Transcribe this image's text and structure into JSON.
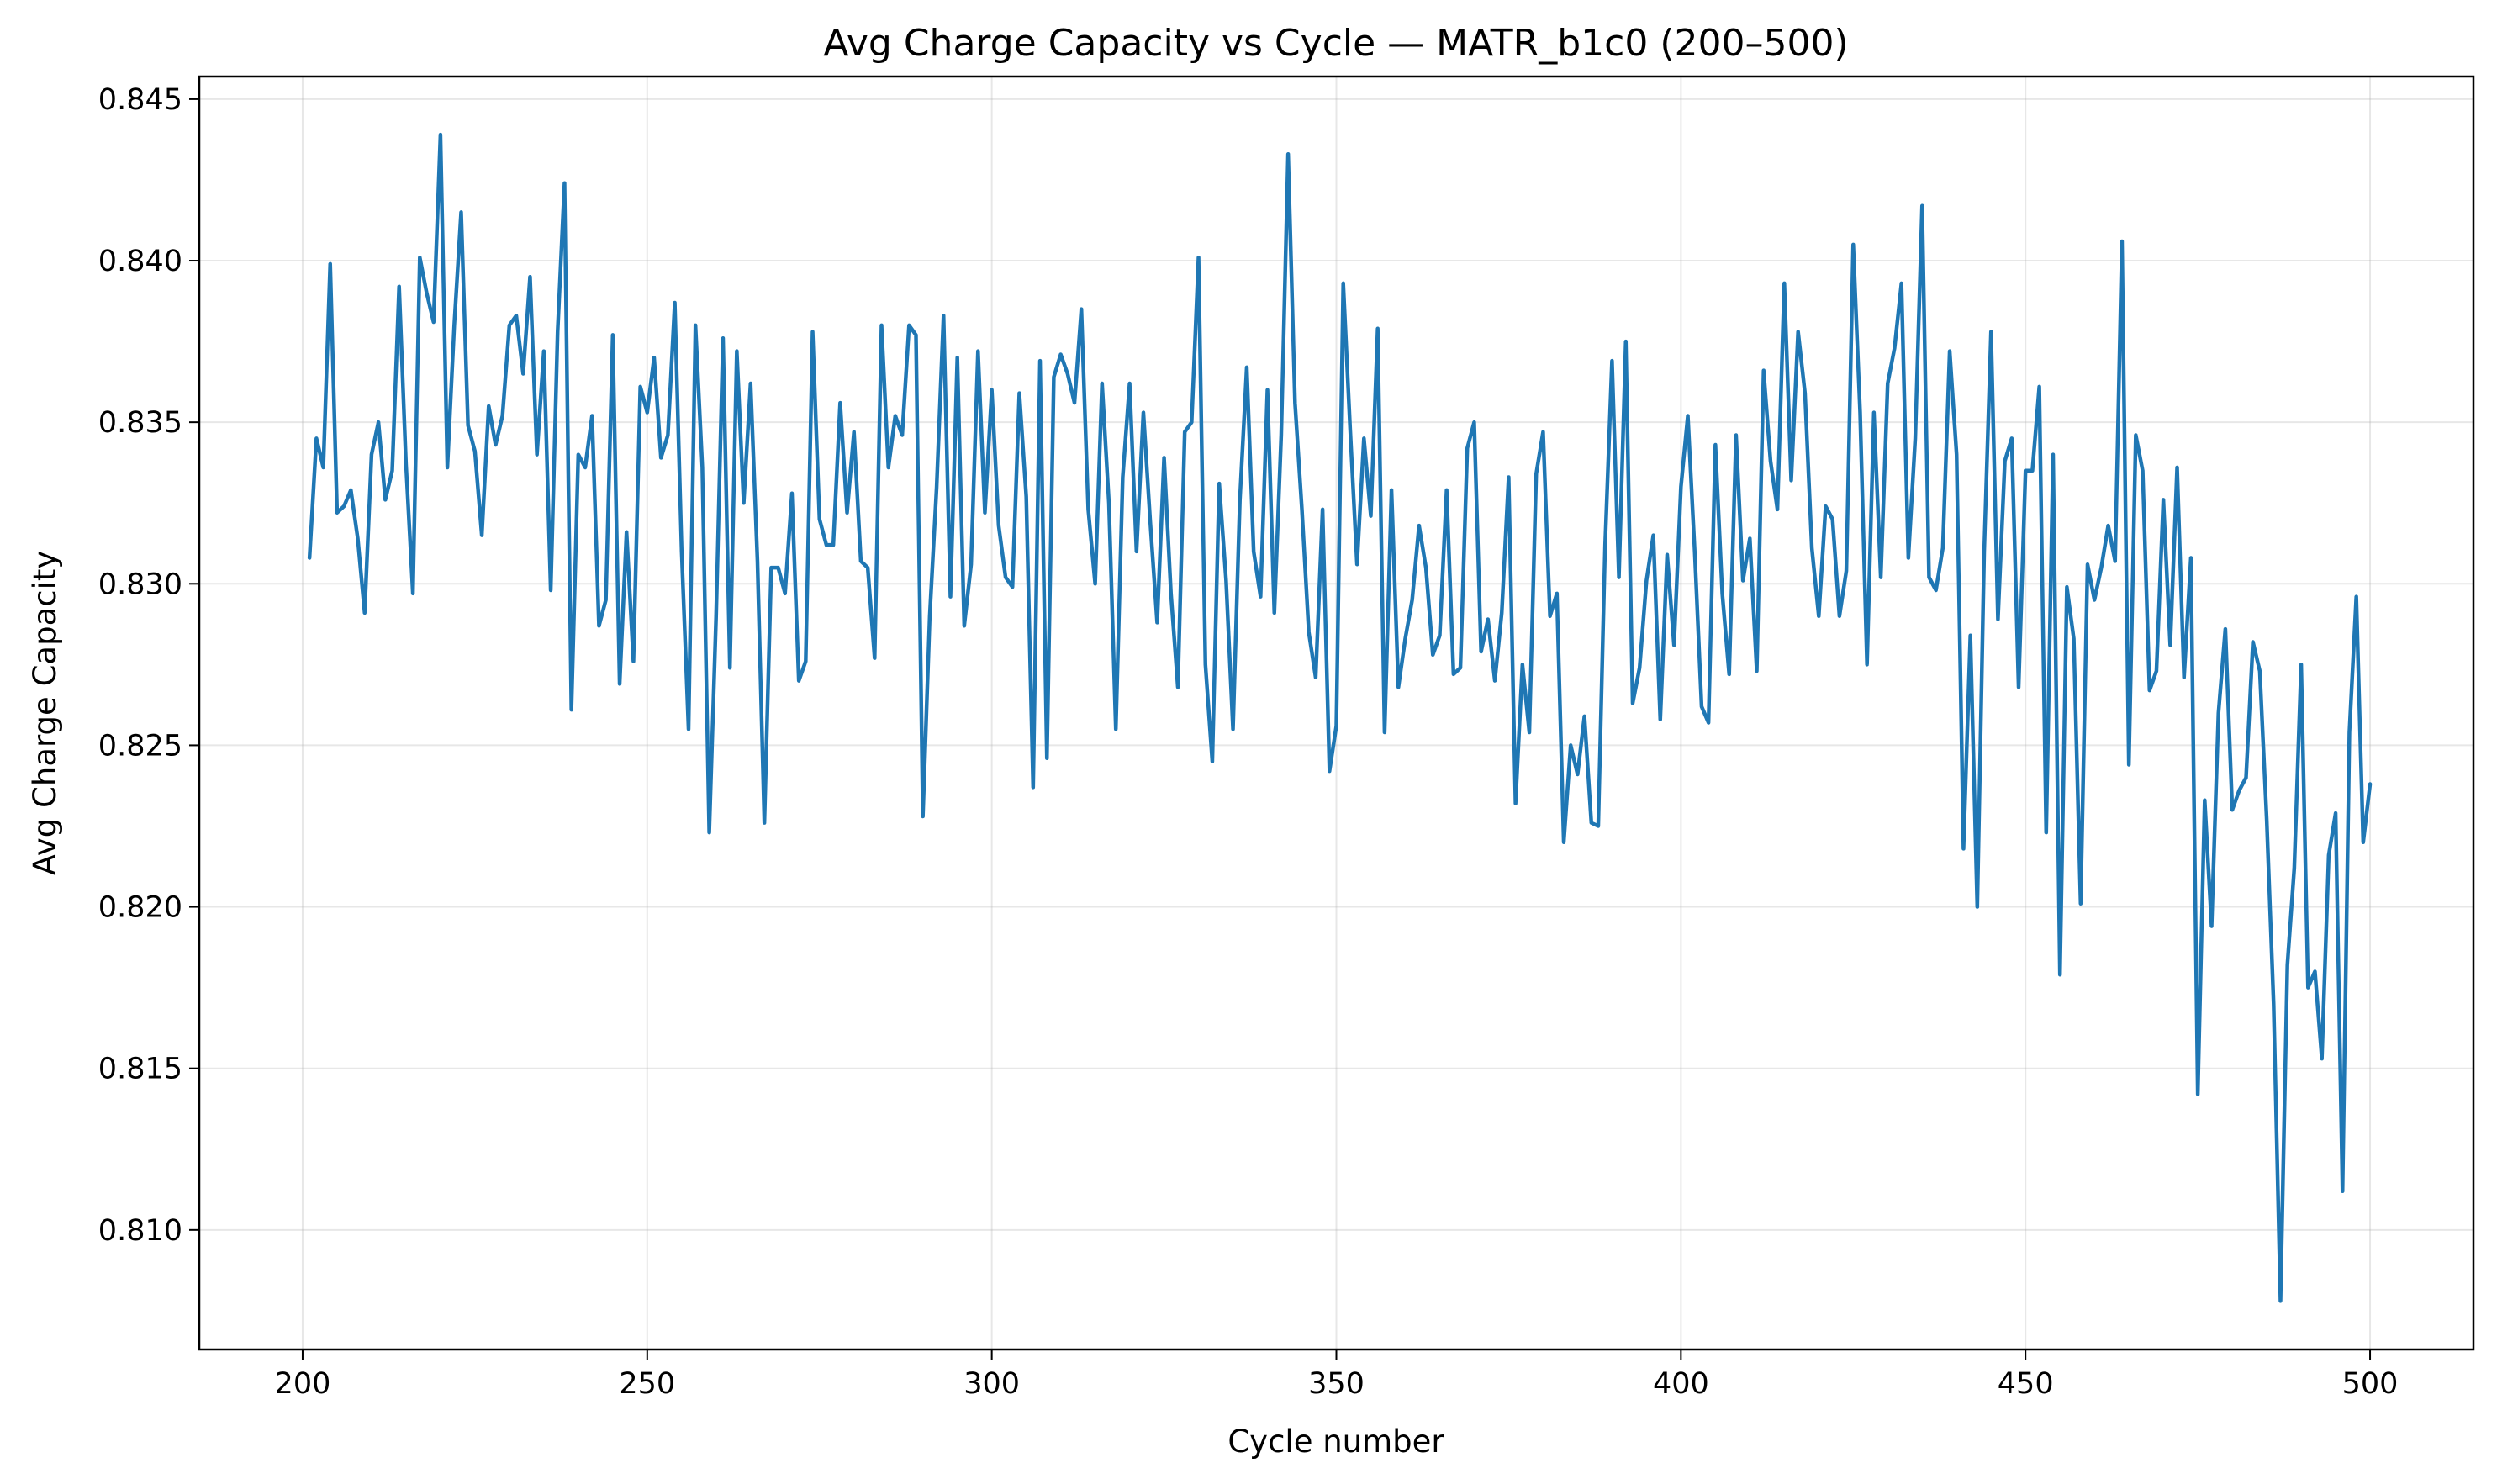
{
  "chart_data": {
    "type": "line",
    "title": "Avg Charge Capacity vs Cycle — MATR_b1c0 (200–500)",
    "xlabel": "Cycle number",
    "ylabel": "Avg Charge Capacity",
    "xlim": [
      185,
      515
    ],
    "ylim": [
      0.8063,
      0.8457
    ],
    "x_ticks": [
      200,
      250,
      300,
      350,
      400,
      450,
      500
    ],
    "y_ticks": [
      0.81,
      0.815,
      0.82,
      0.825,
      0.83,
      0.835,
      0.84,
      0.845
    ],
    "x_tick_labels": [
      "200",
      "250",
      "300",
      "350",
      "400",
      "450",
      "500"
    ],
    "y_tick_labels": [
      "0.810",
      "0.815",
      "0.820",
      "0.825",
      "0.830",
      "0.835",
      "0.840",
      "0.845"
    ],
    "grid": true,
    "legend": "none",
    "series": [
      {
        "color": "#1f77b4",
        "x_start": 201,
        "x_step": 1,
        "values": [
          0.8308,
          0.8345,
          0.8336,
          0.8399,
          0.8322,
          0.8324,
          0.8329,
          0.8314,
          0.8291,
          0.834,
          0.835,
          0.8326,
          0.8335,
          0.8392,
          0.8337,
          0.8297,
          0.8401,
          0.839,
          0.8381,
          0.8439,
          0.8336,
          0.838,
          0.8415,
          0.8349,
          0.8341,
          0.8315,
          0.8355,
          0.8343,
          0.8352,
          0.838,
          0.8383,
          0.8365,
          0.8395,
          0.834,
          0.8372,
          0.8298,
          0.8378,
          0.8424,
          0.8261,
          0.834,
          0.8336,
          0.8352,
          0.8287,
          0.8295,
          0.8377,
          0.8269,
          0.8316,
          0.8276,
          0.8361,
          0.8353,
          0.837,
          0.8339,
          0.8346,
          0.8387,
          0.831,
          0.8255,
          0.838,
          0.8336,
          0.8223,
          0.829,
          0.8376,
          0.8274,
          0.8372,
          0.8325,
          0.8362,
          0.8307,
          0.8226,
          0.8305,
          0.8305,
          0.8297,
          0.8328,
          0.827,
          0.8276,
          0.8378,
          0.832,
          0.8312,
          0.8312,
          0.8356,
          0.8322,
          0.8347,
          0.8307,
          0.8305,
          0.8277,
          0.838,
          0.8336,
          0.8352,
          0.8346,
          0.838,
          0.8377,
          0.8228,
          0.829,
          0.833,
          0.8383,
          0.8296,
          0.837,
          0.8287,
          0.8306,
          0.8372,
          0.8322,
          0.836,
          0.8318,
          0.8302,
          0.8299,
          0.8359,
          0.8327,
          0.8237,
          0.8369,
          0.8246,
          0.8364,
          0.8371,
          0.8365,
          0.8356,
          0.8385,
          0.8323,
          0.83,
          0.8362,
          0.8325,
          0.8255,
          0.8333,
          0.8362,
          0.831,
          0.8353,
          0.8319,
          0.8288,
          0.8339,
          0.8297,
          0.8268,
          0.8347,
          0.835,
          0.8401,
          0.8275,
          0.8245,
          0.8331,
          0.8301,
          0.8255,
          0.8326,
          0.8367,
          0.831,
          0.8296,
          0.836,
          0.8291,
          0.8346,
          0.8433,
          0.8356,
          0.8323,
          0.8285,
          0.8271,
          0.8323,
          0.8242,
          0.8256,
          0.8393,
          0.8348,
          0.8306,
          0.8345,
          0.8321,
          0.8379,
          0.8254,
          0.8329,
          0.8268,
          0.8283,
          0.8295,
          0.8318,
          0.8305,
          0.8278,
          0.8284,
          0.8329,
          0.8272,
          0.8274,
          0.8342,
          0.835,
          0.8279,
          0.8289,
          0.827,
          0.8291,
          0.8333,
          0.8232,
          0.8275,
          0.8254,
          0.8334,
          0.8347,
          0.829,
          0.8297,
          0.822,
          0.825,
          0.8241,
          0.8259,
          0.8226,
          0.8225,
          0.8312,
          0.8369,
          0.8302,
          0.8375,
          0.8263,
          0.8274,
          0.8301,
          0.8315,
          0.8258,
          0.8309,
          0.8281,
          0.833,
          0.8352,
          0.831,
          0.8262,
          0.8257,
          0.8343,
          0.8297,
          0.8272,
          0.8346,
          0.8301,
          0.8314,
          0.8273,
          0.8366,
          0.8338,
          0.8323,
          0.8393,
          0.8332,
          0.8378,
          0.8359,
          0.8311,
          0.829,
          0.8324,
          0.832,
          0.829,
          0.8304,
          0.8405,
          0.8353,
          0.8275,
          0.8353,
          0.8302,
          0.8362,
          0.8373,
          0.8393,
          0.8308,
          0.8345,
          0.8417,
          0.8302,
          0.8298,
          0.8311,
          0.8372,
          0.834,
          0.8218,
          0.8284,
          0.82,
          0.831,
          0.8378,
          0.8289,
          0.8338,
          0.8345,
          0.8268,
          0.8335,
          0.8335,
          0.8361,
          0.8223,
          0.834,
          0.8179,
          0.8299,
          0.8283,
          0.8201,
          0.8306,
          0.8295,
          0.8305,
          0.8318,
          0.8307,
          0.8406,
          0.8244,
          0.8346,
          0.8335,
          0.8267,
          0.8273,
          0.8326,
          0.8281,
          0.8336,
          0.8271,
          0.8308,
          0.8142,
          0.8233,
          0.8194,
          0.826,
          0.8286,
          0.823,
          0.8236,
          0.824,
          0.8282,
          0.8273,
          0.8227,
          0.817,
          0.8078,
          0.8182,
          0.8212,
          0.8275,
          0.8175,
          0.818,
          0.8153,
          0.8216,
          0.8229,
          0.8112,
          0.8254,
          0.8296,
          0.822,
          0.8238
        ]
      }
    ]
  }
}
